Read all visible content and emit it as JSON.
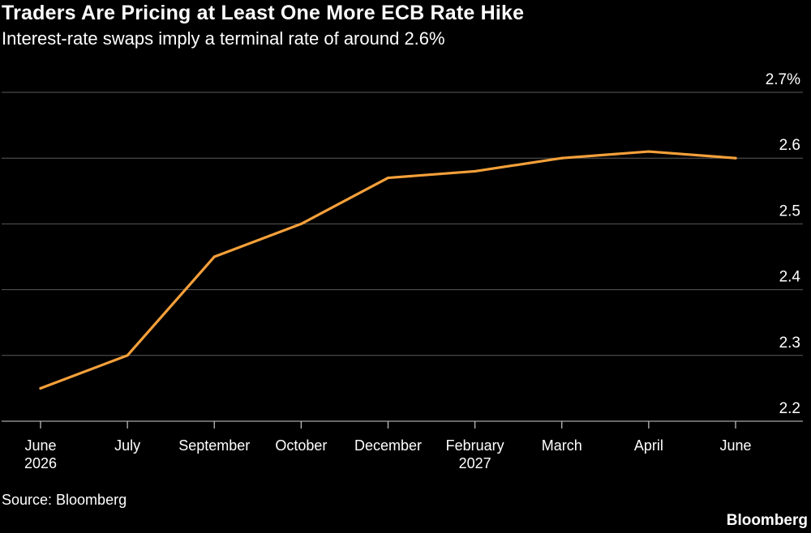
{
  "header": {
    "title": "Traders Are Pricing at Least One More ECB Rate Hike",
    "subtitle": "Interest-rate swaps imply a terminal rate of around 2.6%"
  },
  "footer": {
    "source": "Source: Bloomberg",
    "brand": "Bloomberg"
  },
  "colors": {
    "background": "#000000",
    "line": "#f5a03a",
    "grid": "#5a5a5a",
    "text": "#ffffff"
  },
  "chart_data": {
    "type": "line",
    "title": "Traders Are Pricing at Least One More ECB Rate Hike",
    "subtitle": "Interest-rate swaps imply a terminal rate of around 2.6%",
    "xlabel": "",
    "ylabel": "",
    "categories": [
      [
        "June",
        "2026"
      ],
      [
        "July"
      ],
      [
        "September"
      ],
      [
        "October"
      ],
      [
        "December"
      ],
      [
        "February",
        "2027"
      ],
      [
        "March"
      ],
      [
        "April"
      ],
      [
        "June"
      ]
    ],
    "series": [
      {
        "values": [
          2.25,
          2.3,
          2.45,
          2.5,
          2.57,
          2.58,
          2.6,
          2.61,
          2.6
        ]
      }
    ],
    "ylim": [
      2.2,
      2.7
    ],
    "yticks": [
      2.2,
      2.3,
      2.4,
      2.5,
      2.6,
      2.7
    ],
    "ytick_labels": [
      "2.2",
      "2.3",
      "2.4",
      "2.5",
      "2.6",
      "2.7%"
    ],
    "y_axis_side": "right",
    "grid": true,
    "legend": "none"
  }
}
